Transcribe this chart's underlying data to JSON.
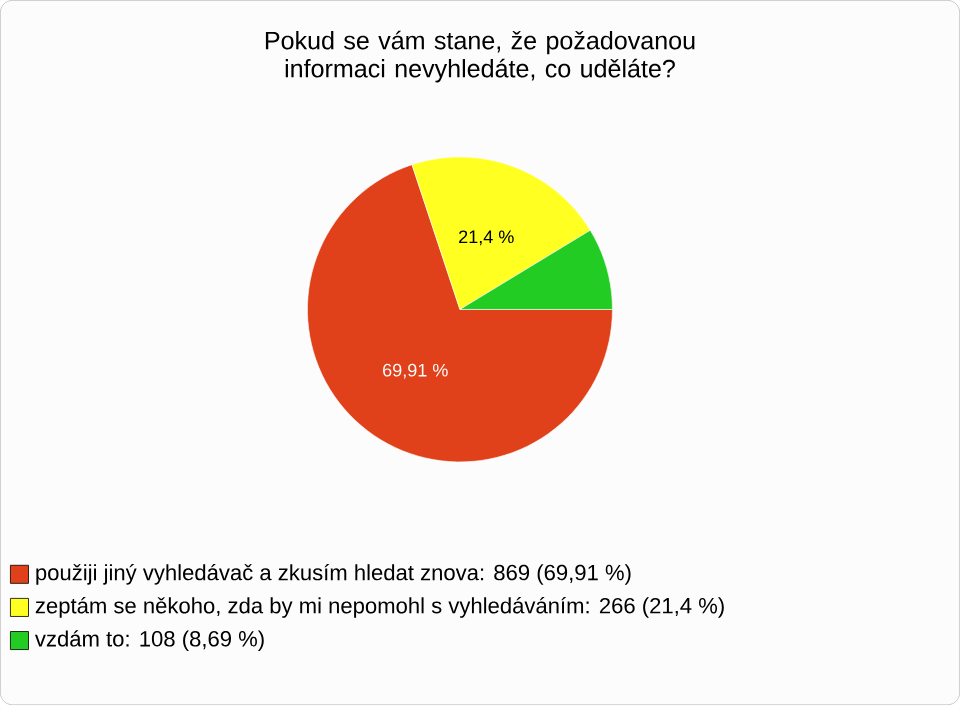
{
  "chart_data": {
    "type": "pie",
    "title": "Pokud se vám stane, že požadovanou informaci nevyhledáte, co uděláte?",
    "categories": [
      "použiji jiný vyhledávač a zkusím hledat znova: 869 (69,91 %)",
      "zeptám se někoho, zda by mi nepomohl s vyhledáváním: 266 (21,4 %)",
      "vzdám to: 108 (8,69 %)"
    ],
    "values": [
      69.91,
      21.4,
      8.69
    ],
    "colors": [
      "#e0401a",
      "#ffff22",
      "#22cc22"
    ],
    "value_labels": [
      "69,91 %",
      "21,4 %",
      null
    ],
    "legend": "bottom left"
  }
}
